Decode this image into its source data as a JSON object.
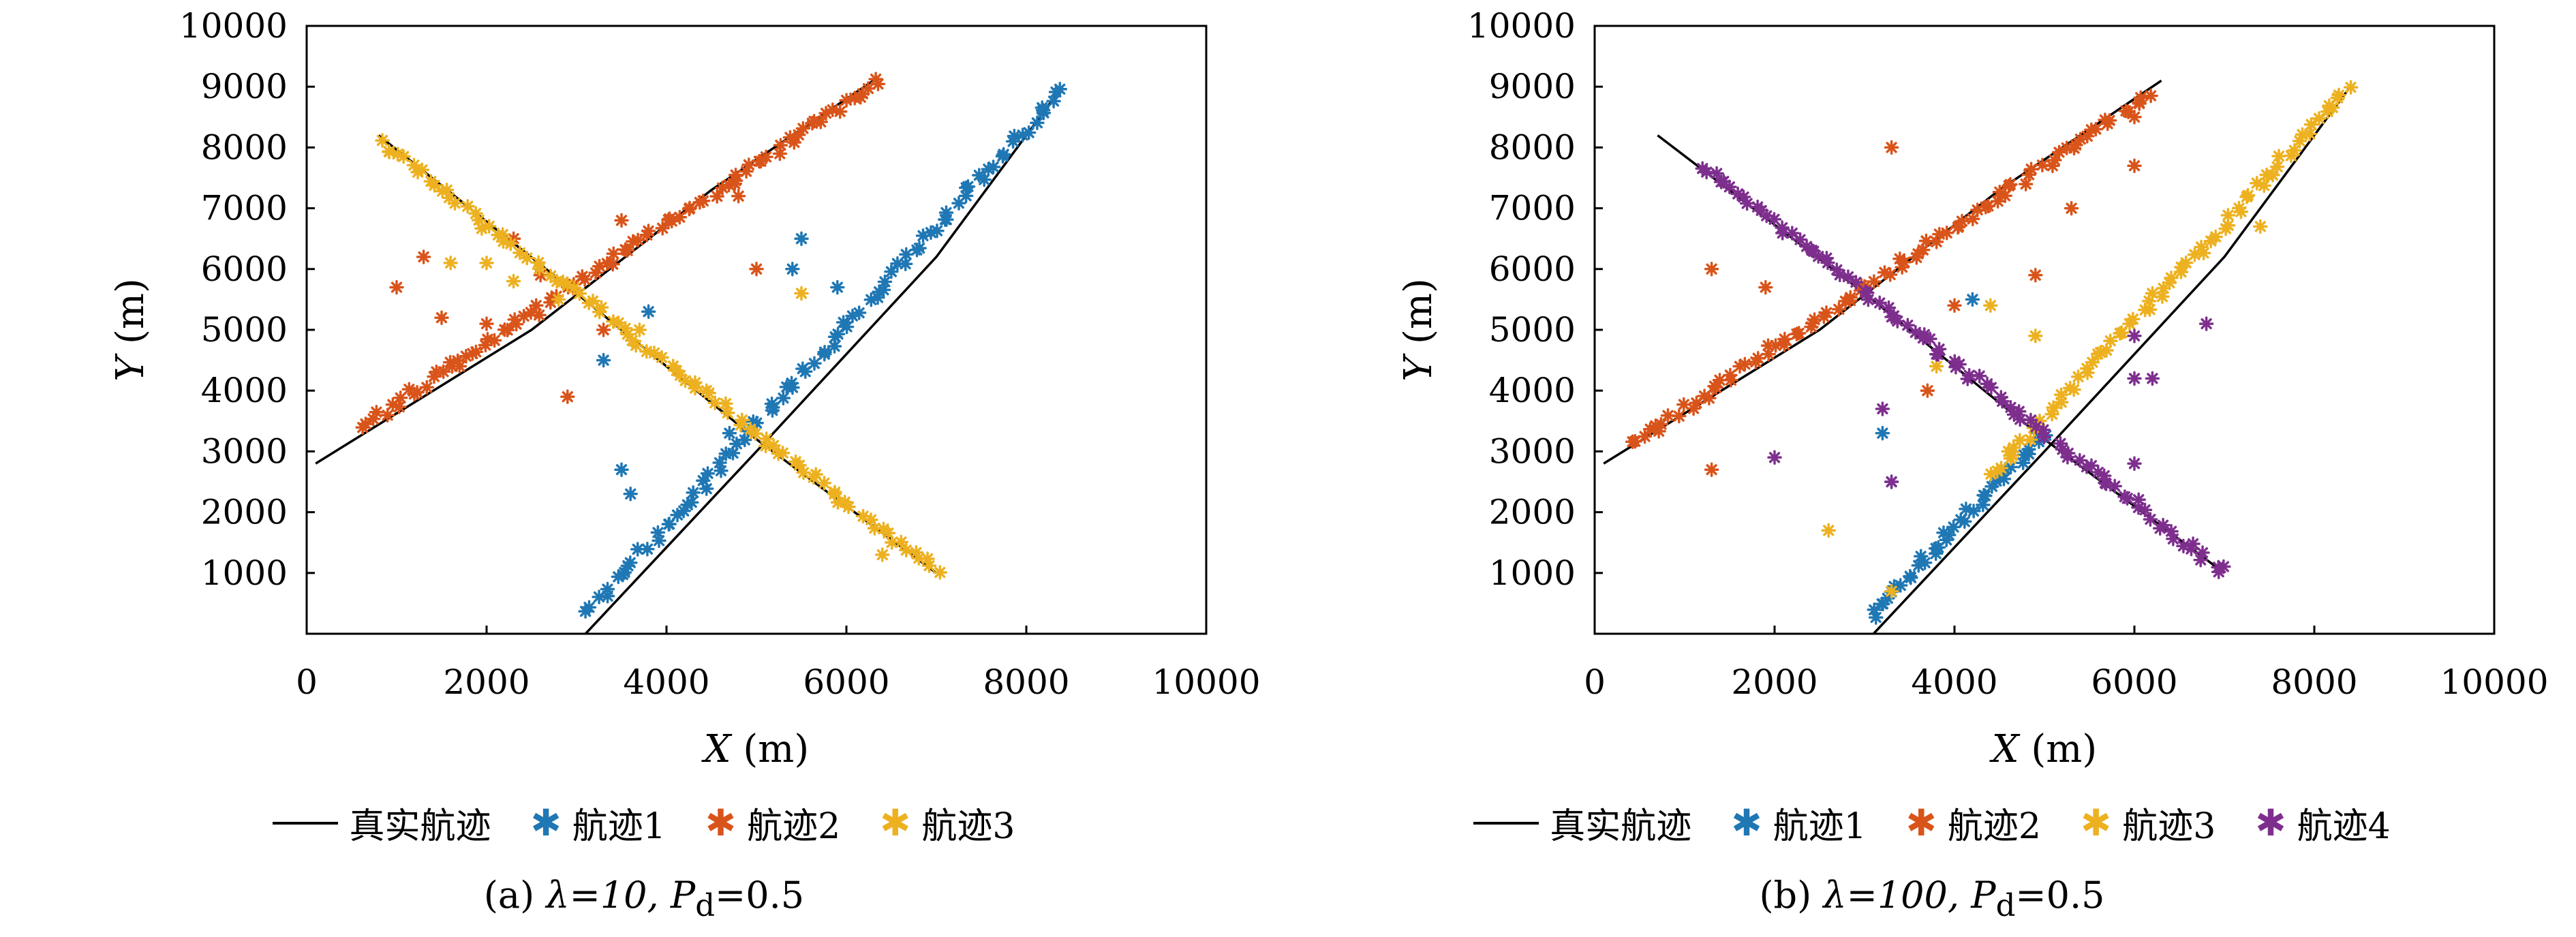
{
  "colors": {
    "true_track": "#000000",
    "track1": "#1f77b4",
    "track2": "#d9541a",
    "track3": "#edb120",
    "track4": "#7e2f8e"
  },
  "legend_labels": {
    "truth": "真实航迹",
    "track1": "航迹1",
    "track2": "航迹2",
    "track3": "航迹3",
    "track4": "航迹4"
  },
  "captions": {
    "a_prefix": "(a) ",
    "a_lambda": "λ=10, ",
    "a_pd": "P",
    "a_pd_sub": "d",
    "a_pd_val": "=0.5",
    "b_prefix": "(b) ",
    "b_lambda": "λ=100, ",
    "b_pd": "P",
    "b_pd_sub": "d",
    "b_pd_val": "=0.5"
  },
  "axis_text": {
    "xlabel_var": "X",
    "xlabel_unit": " (m)",
    "ylabel_var": "Y",
    "ylabel_unit": " (m)"
  },
  "chart_data": [
    {
      "type": "scatter",
      "panel": "a",
      "xlim": [
        0,
        10000
      ],
      "ylim": [
        0,
        10000
      ],
      "x_ticks": [
        "0",
        "2000",
        "4000",
        "6000",
        "8000",
        "10000"
      ],
      "y_ticks": [
        "1000",
        "2000",
        "3000",
        "4000",
        "5000",
        "6000",
        "7000",
        "8000",
        "9000",
        "10000"
      ],
      "true_tracks": [
        [
          [
            800,
            8200
          ],
          [
            3000,
            5600
          ],
          [
            5000,
            3200
          ],
          [
            7000,
            1000
          ]
        ],
        [
          [
            100,
            2800
          ],
          [
            2500,
            5000
          ],
          [
            4500,
            7300
          ],
          [
            6300,
            9100
          ]
        ],
        [
          [
            3100,
            0
          ],
          [
            5000,
            3000
          ],
          [
            7000,
            6200
          ],
          [
            8400,
            9000
          ]
        ]
      ],
      "series": [
        {
          "name": "航迹1",
          "color_key": "track1",
          "line": [
            [
              3150,
              400
            ],
            [
              8400,
              9000
            ]
          ],
          "n": 90,
          "jitter": 60,
          "extra": [
            [
              3600,
              2300
            ],
            [
              3300,
              4500
            ],
            [
              3800,
              5300
            ],
            [
              5500,
              6500
            ],
            [
              5400,
              6000
            ],
            [
              5900,
              5700
            ],
            [
              4700,
              3300
            ],
            [
              3500,
              2700
            ]
          ]
        },
        {
          "name": "航迹2",
          "color_key": "track2",
          "line": [
            [
              600,
              3400
            ],
            [
              6400,
              9100
            ]
          ],
          "n": 90,
          "jitter": 60,
          "extra": [
            [
              1000,
              5700
            ],
            [
              1300,
              6200
            ],
            [
              1500,
              5200
            ],
            [
              2000,
              5100
            ],
            [
              2300,
              6500
            ],
            [
              2900,
              3900
            ],
            [
              3300,
              5000
            ],
            [
              3500,
              6800
            ],
            [
              5000,
              6000
            ],
            [
              4800,
              7200
            ],
            [
              1700,
              4400
            ],
            [
              2600,
              5900
            ]
          ]
        },
        {
          "name": "航迹3",
          "color_key": "track3",
          "line": [
            [
              800,
              8100
            ],
            [
              7000,
              1000
            ]
          ],
          "n": 90,
          "jitter": 60,
          "extra": [
            [
              1600,
              6100
            ],
            [
              2000,
              6100
            ],
            [
              2300,
              5800
            ],
            [
              3700,
              5000
            ],
            [
              5500,
              5600
            ],
            [
              6400,
              1300
            ],
            [
              2800,
              5500
            ]
          ]
        }
      ]
    },
    {
      "type": "scatter",
      "panel": "b",
      "xlim": [
        0,
        10000
      ],
      "ylim": [
        0,
        10000
      ],
      "x_ticks": [
        "0",
        "2000",
        "4000",
        "6000",
        "8000",
        "10000"
      ],
      "y_ticks": [
        "1000",
        "2000",
        "3000",
        "4000",
        "5000",
        "6000",
        "7000",
        "8000",
        "9000",
        "10000"
      ],
      "true_tracks": [
        [
          [
            700,
            8200
          ],
          [
            3000,
            5600
          ],
          [
            5000,
            3200
          ],
          [
            7000,
            1000
          ]
        ],
        [
          [
            100,
            2800
          ],
          [
            2500,
            5000
          ],
          [
            4500,
            7300
          ],
          [
            6300,
            9100
          ]
        ],
        [
          [
            3100,
            0
          ],
          [
            5000,
            3000
          ],
          [
            7000,
            6200
          ],
          [
            8400,
            9000
          ]
        ]
      ],
      "series": [
        {
          "name": "航迹1",
          "color_key": "track1",
          "line": [
            [
              3100,
              300
            ],
            [
              5000,
              3300
            ]
          ],
          "n": 40,
          "jitter": 60,
          "extra": [
            [
              3200,
              3300
            ],
            [
              4200,
              5500
            ],
            [
              3300,
              2500
            ]
          ]
        },
        {
          "name": "航迹2",
          "color_key": "track2",
          "line": [
            [
              400,
              3100
            ],
            [
              6200,
              8900
            ]
          ],
          "n": 90,
          "jitter": 60,
          "extra": [
            [
              1300,
              6000
            ],
            [
              1900,
              5700
            ],
            [
              3300,
              8000
            ],
            [
              4000,
              5400
            ],
            [
              4900,
              5900
            ],
            [
              5300,
              7000
            ],
            [
              6000,
              7700
            ],
            [
              1300,
              2700
            ],
            [
              3700,
              4000
            ],
            [
              6000,
              8500
            ]
          ]
        },
        {
          "name": "航迹3",
          "color_key": "track3",
          "line": [
            [
              4400,
              2600
            ],
            [
              8400,
              9000
            ]
          ],
          "n": 70,
          "jitter": 60,
          "extra": [
            [
              2600,
              1700
            ],
            [
              3300,
              700
            ],
            [
              4900,
              4900
            ],
            [
              4400,
              5400
            ],
            [
              3800,
              4400
            ],
            [
              6200,
              5600
            ],
            [
              7400,
              6700
            ],
            [
              4600,
              3000
            ]
          ]
        },
        {
          "name": "航迹4",
          "color_key": "track4",
          "line": [
            [
              1200,
              7700
            ],
            [
              7000,
              1000
            ]
          ],
          "n": 90,
          "jitter": 60,
          "extra": [
            [
              2000,
              2900
            ],
            [
              3300,
              2500
            ],
            [
              3200,
              3700
            ],
            [
              6000,
              4200
            ],
            [
              6800,
              5100
            ],
            [
              6000,
              4900
            ],
            [
              6200,
              4200
            ],
            [
              6000,
              2800
            ],
            [
              3800,
              4600
            ]
          ]
        }
      ]
    }
  ]
}
